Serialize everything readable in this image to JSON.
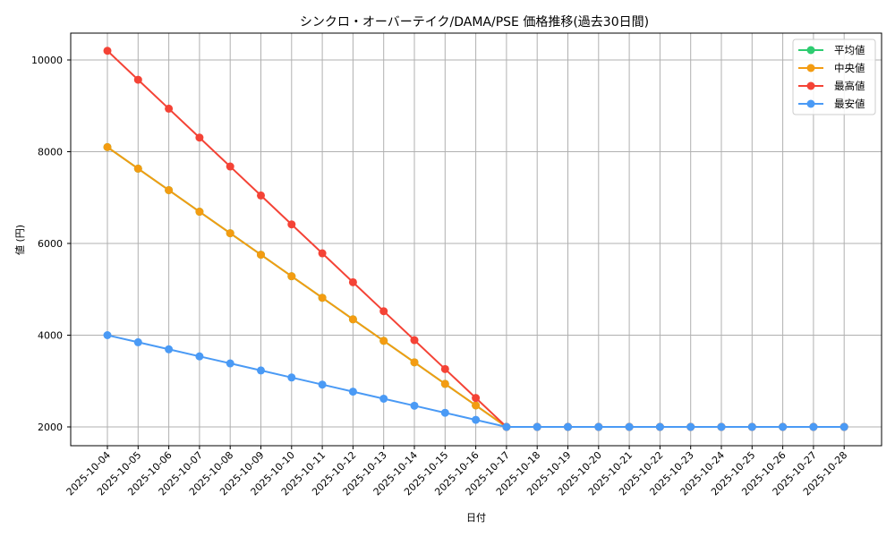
{
  "chart_data": {
    "type": "line",
    "title": "シンクロ・オーバーテイク/DAMA/PSE 価格推移(過去30日間)",
    "xlabel": "日付",
    "ylabel": "値 (円)",
    "ylim": [
      1560,
      10600
    ],
    "yticks": [
      2000,
      4000,
      6000,
      8000,
      10000
    ],
    "grid": true,
    "legend_position": "upper right",
    "categories": [
      "2025-10-04",
      "2025-10-05",
      "2025-10-06",
      "2025-10-07",
      "2025-10-08",
      "2025-10-09",
      "2025-10-10",
      "2025-10-11",
      "2025-10-12",
      "2025-10-13",
      "2025-10-14",
      "2025-10-15",
      "2025-10-16",
      "2025-10-17",
      "2025-10-18",
      "2025-10-19",
      "2025-10-20",
      "2025-10-21",
      "2025-10-22",
      "2025-10-23",
      "2025-10-24",
      "2025-10-25",
      "2025-10-26",
      "2025-10-27",
      "2025-10-28"
    ],
    "series": [
      {
        "name": "平均値",
        "color": "#2ecc71",
        "values": [
          8100,
          7631,
          7162,
          6692,
          6223,
          5754,
          5285,
          4815,
          4346,
          3877,
          3408,
          2938,
          2469,
          2000,
          2000,
          2000,
          2000,
          2000,
          2000,
          2000,
          2000,
          2000,
          2000,
          2000,
          2000
        ]
      },
      {
        "name": "中央値",
        "color": "#f39c12",
        "values": [
          8100,
          7631,
          7162,
          6692,
          6223,
          5754,
          5285,
          4815,
          4346,
          3877,
          3408,
          2938,
          2469,
          2000,
          2000,
          2000,
          2000,
          2000,
          2000,
          2000,
          2000,
          2000,
          2000,
          2000,
          2000
        ]
      },
      {
        "name": "最高値",
        "color": "#f44336",
        "values": [
          10200,
          9569,
          8938,
          8308,
          7677,
          7046,
          6415,
          5785,
          5154,
          4523,
          3892,
          3262,
          2631,
          2000,
          2000,
          2000,
          2000,
          2000,
          2000,
          2000,
          2000,
          2000,
          2000,
          2000,
          2000
        ]
      },
      {
        "name": "最安値",
        "color": "#4a9af5",
        "values": [
          4000,
          3846,
          3692,
          3538,
          3385,
          3231,
          3077,
          2923,
          2769,
          2615,
          2462,
          2308,
          2154,
          2000,
          2000,
          2000,
          2000,
          2000,
          2000,
          2000,
          2000,
          2000,
          2000,
          2000,
          2000
        ]
      }
    ]
  }
}
